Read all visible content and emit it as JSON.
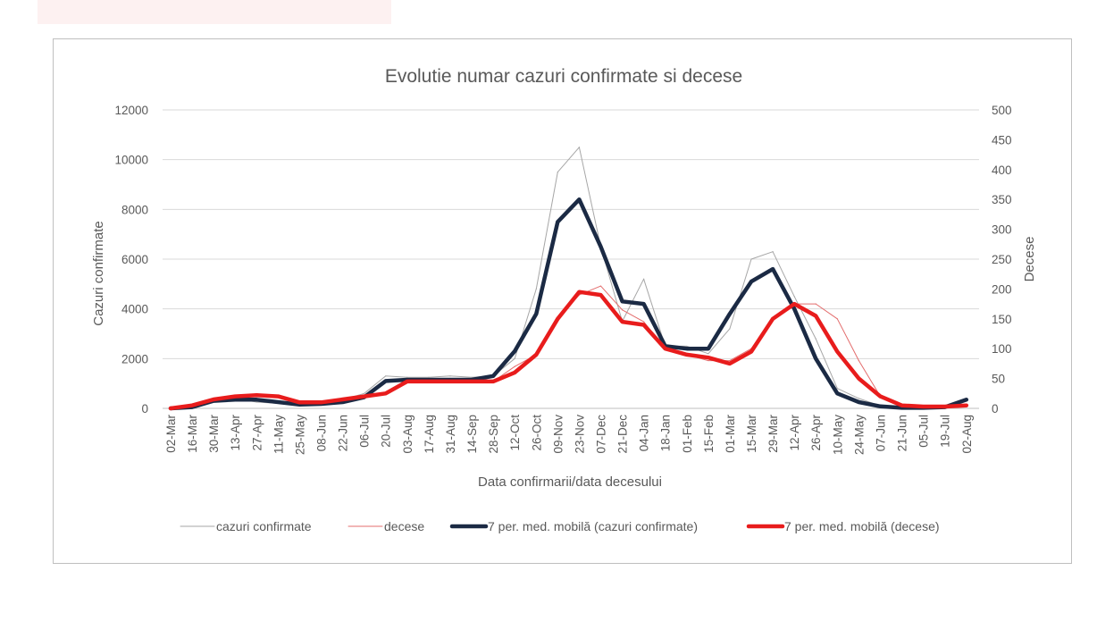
{
  "chart_data": {
    "type": "line",
    "title": "Evolutie numar cazuri confirmate si decese",
    "xlabel": "Data confirmarii/data decesului",
    "ylabel": "Cazuri confirmate",
    "y2label": "Decese",
    "ylim": [
      0,
      12000
    ],
    "y2lim": [
      0,
      500
    ],
    "y_ticks": [
      "0",
      "2000",
      "4000",
      "6000",
      "8000",
      "10000",
      "12000"
    ],
    "y2_ticks": [
      "0",
      "50",
      "100",
      "150",
      "200",
      "250",
      "300",
      "350",
      "400",
      "450",
      "500"
    ],
    "categories": [
      "02-Mar",
      "16-Mar",
      "30-Mar",
      "13-Apr",
      "27-Apr",
      "11-May",
      "25-May",
      "08-Jun",
      "22-Jun",
      "06-Jul",
      "20-Jul",
      "03-Aug",
      "17-Aug",
      "31-Aug",
      "14-Sep",
      "28-Sep",
      "12-Oct",
      "26-Oct",
      "09-Nov",
      "23-Nov",
      "07-Dec",
      "21-Dec",
      "04-Jan",
      "18-Jan",
      "01-Feb",
      "15-Feb",
      "01-Mar",
      "15-Mar",
      "29-Mar",
      "12-Apr",
      "26-Apr",
      "10-May",
      "24-May",
      "07-Jun",
      "21-Jun",
      "05-Jul",
      "19-Jul",
      "02-Aug"
    ],
    "series": [
      {
        "name": "cazuri confirmate",
        "axis": "left",
        "color": "#a6a6a6",
        "style": "thin",
        "values": [
          0,
          150,
          300,
          400,
          250,
          200,
          150,
          250,
          350,
          600,
          1300,
          1250,
          1250,
          1300,
          1250,
          1300,
          2000,
          4800,
          9500,
          10500,
          6500,
          3500,
          5200,
          2500,
          2500,
          2200,
          3200,
          6000,
          6300,
          4500,
          2800,
          800,
          400,
          100,
          50,
          40,
          40,
          150
        ]
      },
      {
        "name": "decese",
        "axis": "right",
        "color": "#e36c6c",
        "style": "thin",
        "values": [
          0,
          5,
          15,
          20,
          22,
          20,
          10,
          10,
          15,
          20,
          25,
          45,
          45,
          45,
          50,
          45,
          70,
          90,
          150,
          190,
          205,
          165,
          145,
          100,
          90,
          80,
          80,
          100,
          150,
          175,
          175,
          150,
          80,
          20,
          5,
          3,
          2,
          5
        ]
      },
      {
        "name": "7 per. med. mobilă (cazuri confirmate)",
        "axis": "left",
        "color": "#1b2a44",
        "style": "thick",
        "values": [
          0,
          50,
          300,
          350,
          350,
          250,
          150,
          180,
          250,
          450,
          1100,
          1150,
          1150,
          1150,
          1150,
          1300,
          2300,
          3800,
          7500,
          8400,
          6500,
          4300,
          4200,
          2500,
          2400,
          2400,
          3800,
          5100,
          5600,
          4000,
          2000,
          600,
          250,
          80,
          20,
          20,
          50,
          350
        ]
      },
      {
        "name": "7 per. med. mobilă (decese)",
        "axis": "right",
        "color": "#e81c1c",
        "style": "thick",
        "values": [
          0,
          5,
          15,
          20,
          22,
          20,
          10,
          10,
          15,
          20,
          25,
          45,
          45,
          45,
          45,
          45,
          60,
          90,
          150,
          195,
          190,
          145,
          140,
          100,
          90,
          85,
          75,
          95,
          150,
          175,
          155,
          95,
          50,
          20,
          5,
          3,
          3,
          5
        ]
      }
    ],
    "legend_position": "bottom"
  }
}
